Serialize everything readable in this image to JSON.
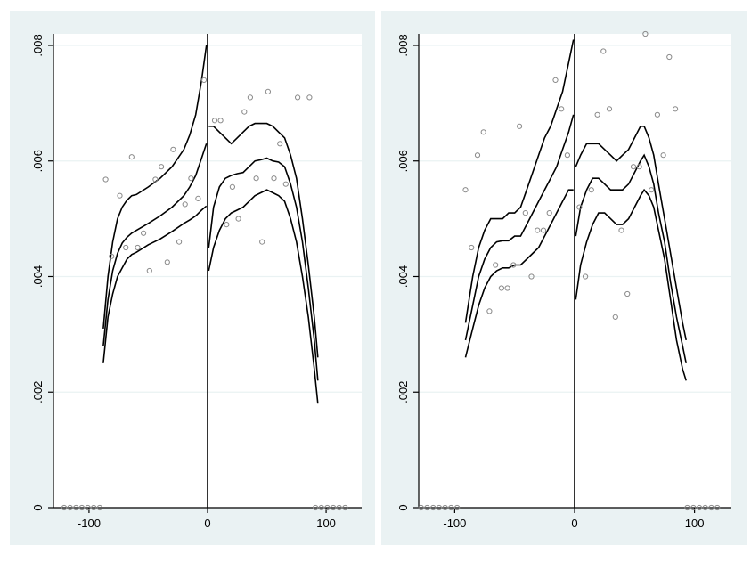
{
  "chart_data": [
    {
      "type": "scatter",
      "panel": "left",
      "xlim": [
        -130,
        130
      ],
      "ylim": [
        0,
        0.0082
      ],
      "xticks": [
        -100,
        0,
        100
      ],
      "xtick_labels": [
        "-100",
        "0",
        "100"
      ],
      "yticks": [
        0,
        0.002,
        0.004,
        0.006,
        0.008
      ],
      "ytick_labels": [
        "0",
        ".002",
        ".004",
        ".006",
        ".008"
      ],
      "grid": true,
      "cutoff": 0,
      "points": [
        [
          -121,
          0
        ],
        [
          -116,
          0
        ],
        [
          -111,
          0
        ],
        [
          -106,
          0
        ],
        [
          -101,
          0
        ],
        [
          -96,
          0
        ],
        [
          -91,
          0
        ],
        [
          -86,
          0.00568
        ],
        [
          -81,
          0.00435
        ],
        [
          -74,
          0.0054
        ],
        [
          -69,
          0.0045
        ],
        [
          -64,
          0.00607
        ],
        [
          -59,
          0.0045
        ],
        [
          -54,
          0.00475
        ],
        [
          -49,
          0.0041
        ],
        [
          -44,
          0.00568
        ],
        [
          -39,
          0.0059
        ],
        [
          -34,
          0.00425
        ],
        [
          -29,
          0.0062
        ],
        [
          -24,
          0.0046
        ],
        [
          -19,
          0.00525
        ],
        [
          -14,
          0.0057
        ],
        [
          -8,
          0.00535
        ],
        [
          -3,
          0.0074
        ],
        [
          6,
          0.0067
        ],
        [
          11,
          0.0067
        ],
        [
          16,
          0.0049
        ],
        [
          21,
          0.00555
        ],
        [
          26,
          0.005
        ],
        [
          31,
          0.00685
        ],
        [
          36,
          0.0071
        ],
        [
          41,
          0.0057
        ],
        [
          46,
          0.0046
        ],
        [
          51,
          0.0072
        ],
        [
          56,
          0.0057
        ],
        [
          61,
          0.0063
        ],
        [
          66,
          0.0056
        ],
        [
          76,
          0.0071
        ],
        [
          86,
          0.0071
        ],
        [
          91,
          0
        ],
        [
          96,
          0
        ],
        [
          101,
          0
        ],
        [
          106,
          0
        ],
        [
          111,
          0
        ],
        [
          116,
          0
        ]
      ],
      "fit_left": {
        "x": [
          -88,
          -84,
          -80,
          -76,
          -72,
          -68,
          -64,
          -60,
          -50,
          -40,
          -30,
          -20,
          -15,
          -10,
          -5,
          -1
        ],
        "lower": [
          0.0025,
          0.0033,
          0.0037,
          0.004,
          0.00415,
          0.0043,
          0.00438,
          0.00442,
          0.00455,
          0.00465,
          0.00478,
          0.00492,
          0.00498,
          0.00505,
          0.00515,
          0.00522
        ],
        "fit": [
          0.0028,
          0.0036,
          0.0041,
          0.0044,
          0.00458,
          0.00468,
          0.00475,
          0.0048,
          0.00492,
          0.00505,
          0.0052,
          0.0054,
          0.00555,
          0.00575,
          0.00605,
          0.0063
        ],
        "upper": [
          0.0031,
          0.004,
          0.0046,
          0.005,
          0.0052,
          0.00532,
          0.0054,
          0.00542,
          0.00555,
          0.0057,
          0.0059,
          0.0062,
          0.00645,
          0.0068,
          0.0074,
          0.008
        ]
      },
      "fit_right": {
        "x": [
          1,
          5,
          10,
          15,
          20,
          25,
          30,
          35,
          40,
          45,
          50,
          55,
          60,
          65,
          70,
          75,
          80,
          85,
          90,
          93
        ],
        "lower": [
          0.0041,
          0.0045,
          0.0048,
          0.005,
          0.0051,
          0.00515,
          0.0052,
          0.0053,
          0.0054,
          0.00545,
          0.0055,
          0.00545,
          0.0054,
          0.0053,
          0.005,
          0.0046,
          0.004,
          0.0033,
          0.0024,
          0.0018
        ],
        "fit": [
          0.0045,
          0.0052,
          0.00555,
          0.0057,
          0.00575,
          0.00578,
          0.0058,
          0.0059,
          0.006,
          0.00602,
          0.00605,
          0.006,
          0.00598,
          0.0059,
          0.0056,
          0.0052,
          0.0046,
          0.0038,
          0.0029,
          0.0022
        ],
        "upper": [
          0.0066,
          0.0066,
          0.0065,
          0.0064,
          0.0063,
          0.0064,
          0.0065,
          0.0066,
          0.00665,
          0.00665,
          0.00665,
          0.0066,
          0.0065,
          0.0064,
          0.0061,
          0.0057,
          0.005,
          0.0042,
          0.0033,
          0.0026
        ]
      }
    },
    {
      "type": "scatter",
      "panel": "right",
      "xlim": [
        -130,
        130
      ],
      "ylim": [
        0,
        0.0082
      ],
      "xticks": [
        -100,
        0,
        100
      ],
      "xtick_labels": [
        "-100",
        "0",
        "100"
      ],
      "yticks": [
        0,
        0.002,
        0.004,
        0.006,
        0.008
      ],
      "ytick_labels": [
        "0",
        ".002",
        ".004",
        ".006",
        ".008"
      ],
      "grid": true,
      "cutoff": 0,
      "points": [
        [
          -128,
          0
        ],
        [
          -123,
          0
        ],
        [
          -118,
          0
        ],
        [
          -113,
          0
        ],
        [
          -108,
          0
        ],
        [
          -103,
          0
        ],
        [
          -98,
          0
        ],
        [
          -91,
          0.0055
        ],
        [
          -86,
          0.0045
        ],
        [
          -81,
          0.0061
        ],
        [
          -76,
          0.0065
        ],
        [
          -71,
          0.0034
        ],
        [
          -66,
          0.0042
        ],
        [
          -61,
          0.0038
        ],
        [
          -56,
          0.0038
        ],
        [
          -51,
          0.0042
        ],
        [
          -46,
          0.0066
        ],
        [
          -41,
          0.0051
        ],
        [
          -36,
          0.004
        ],
        [
          -31,
          0.0048
        ],
        [
          -26,
          0.0048
        ],
        [
          -21,
          0.0051
        ],
        [
          -16,
          0.0074
        ],
        [
          -11,
          0.0069
        ],
        [
          -6,
          0.0061
        ],
        [
          4,
          0.0052
        ],
        [
          9,
          0.004
        ],
        [
          14,
          0.0055
        ],
        [
          19,
          0.0068
        ],
        [
          24,
          0.0079
        ],
        [
          29,
          0.0069
        ],
        [
          34,
          0.0033
        ],
        [
          39,
          0.0048
        ],
        [
          44,
          0.0037
        ],
        [
          49,
          0.0059
        ],
        [
          54,
          0.0059
        ],
        [
          59,
          0.0082
        ],
        [
          64,
          0.0055
        ],
        [
          69,
          0.0068
        ],
        [
          74,
          0.0061
        ],
        [
          79,
          0.0078
        ],
        [
          84,
          0.0069
        ],
        [
          94,
          0
        ],
        [
          99,
          0
        ],
        [
          104,
          0
        ],
        [
          109,
          0
        ],
        [
          114,
          0
        ],
        [
          119,
          0
        ]
      ],
      "fit_left": {
        "x": [
          -91,
          -85,
          -80,
          -75,
          -70,
          -65,
          -60,
          -55,
          -50,
          -45,
          -40,
          -35,
          -30,
          -25,
          -20,
          -15,
          -10,
          -5,
          -1
        ],
        "lower": [
          0.0026,
          0.0031,
          0.0035,
          0.0038,
          0.004,
          0.0041,
          0.00415,
          0.00415,
          0.0042,
          0.0042,
          0.0043,
          0.0044,
          0.0045,
          0.0047,
          0.0049,
          0.0051,
          0.0053,
          0.0055,
          0.0055
        ],
        "fit": [
          0.0029,
          0.0035,
          0.004,
          0.0043,
          0.0045,
          0.0046,
          0.00462,
          0.00462,
          0.0047,
          0.0047,
          0.0049,
          0.0051,
          0.0053,
          0.0055,
          0.0057,
          0.0059,
          0.0062,
          0.0065,
          0.0068
        ],
        "upper": [
          0.0032,
          0.004,
          0.0045,
          0.0048,
          0.005,
          0.005,
          0.005,
          0.0051,
          0.0051,
          0.0052,
          0.0055,
          0.0058,
          0.0061,
          0.0064,
          0.0066,
          0.0069,
          0.0072,
          0.0077,
          0.0081
        ]
      },
      "fit_right": {
        "x": [
          1,
          5,
          10,
          15,
          20,
          25,
          30,
          35,
          40,
          45,
          50,
          55,
          58,
          62,
          66,
          70,
          75,
          80,
          85,
          90,
          93
        ],
        "lower": [
          0.0036,
          0.0042,
          0.0046,
          0.0049,
          0.0051,
          0.0051,
          0.005,
          0.0049,
          0.0049,
          0.005,
          0.0052,
          0.0054,
          0.0055,
          0.0054,
          0.0052,
          0.0048,
          0.0043,
          0.0036,
          0.0029,
          0.0024,
          0.0022
        ],
        "fit": [
          0.0047,
          0.0052,
          0.0055,
          0.0057,
          0.0057,
          0.0056,
          0.0055,
          0.0055,
          0.0055,
          0.0056,
          0.0058,
          0.006,
          0.0061,
          0.0059,
          0.0056,
          0.0051,
          0.0046,
          0.0039,
          0.0033,
          0.0028,
          0.0025
        ],
        "upper": [
          0.0059,
          0.0061,
          0.0063,
          0.0063,
          0.0063,
          0.0062,
          0.0061,
          0.006,
          0.0061,
          0.0062,
          0.0064,
          0.0066,
          0.0066,
          0.0064,
          0.0061,
          0.0056,
          0.005,
          0.0044,
          0.0038,
          0.0032,
          0.0029
        ]
      }
    }
  ]
}
